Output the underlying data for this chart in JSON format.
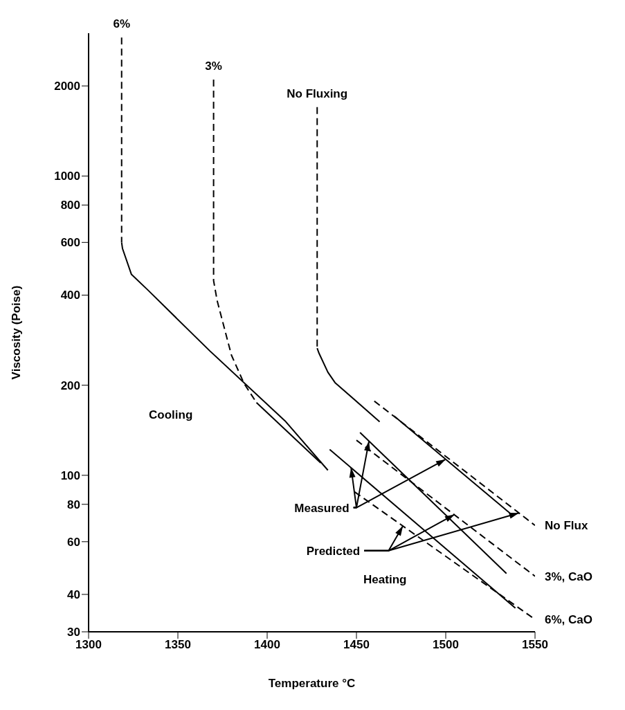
{
  "chart_data": {
    "type": "line",
    "xlabel": "Temperature °C",
    "ylabel": "Viscosity (Poise)",
    "log": true,
    "xlim": [
      1300,
      1550
    ],
    "xticks": [
      1300,
      1350,
      1400,
      1450,
      1500,
      1550
    ],
    "ylim": [
      30,
      3000
    ],
    "yticks": [
      30,
      40,
      60,
      80,
      100,
      200,
      400,
      600,
      800,
      1000,
      2000
    ],
    "series": [
      {
        "color": "#000000",
        "line_style": "dashed",
        "x": [
          1318.5,
          1318.5
        ],
        "values": [
          2900,
          600
        ]
      },
      {
        "color": "#000000",
        "line_style": "solid",
        "x": [
          1318.5,
          1319,
          1324,
          1333,
          1368,
          1410,
          1434
        ],
        "values": [
          600,
          572,
          469,
          417,
          260,
          152,
          104
        ]
      },
      {
        "color": "#000000",
        "line_style": "dashed",
        "x": [
          1370,
          1370,
          1372,
          1380,
          1387,
          1394
        ],
        "values": [
          2100,
          447,
          383,
          252,
          203,
          175
        ]
      },
      {
        "color": "#000000",
        "line_style": "solid",
        "x": [
          1394,
          1430
        ],
        "values": [
          175,
          110
        ]
      },
      {
        "color": "#000000",
        "line_style": "dashed",
        "x": [
          1428,
          1428
        ],
        "values": [
          1700,
          266
        ]
      },
      {
        "color": "#000000",
        "line_style": "solid",
        "x": [
          1428,
          1429,
          1434,
          1438,
          1463
        ],
        "values": [
          266,
          256,
          221,
          204,
          151
        ]
      },
      {
        "color": "#000000",
        "line_style": "solid",
        "x": [
          1471,
          1538
        ],
        "values": [
          158,
          73
        ]
      },
      {
        "color": "#000000",
        "line_style": "dashed",
        "x": [
          1460,
          1550
        ],
        "values": [
          177,
          68
        ]
      },
      {
        "color": "#000000",
        "line_style": "solid",
        "x": [
          1452,
          1534
        ],
        "values": [
          139,
          47
        ]
      },
      {
        "color": "#000000",
        "line_style": "dashed",
        "x": [
          1450,
          1550
        ],
        "values": [
          131,
          46
        ]
      },
      {
        "color": "#000000",
        "line_style": "solid",
        "x": [
          1435,
          1539
        ],
        "values": [
          122,
          36
        ]
      },
      {
        "color": "#000000",
        "line_style": "dashed",
        "x": [
          1449,
          1550
        ],
        "values": [
          88,
          33
        ]
      }
    ],
    "annotations": [
      {
        "text": "6%",
        "x": 1318.5,
        "y": 2900
      },
      {
        "text": "3%",
        "x": 1370,
        "y": 2100
      },
      {
        "text": "No Fluxing",
        "x": 1428,
        "y": 1700
      },
      {
        "text": "No Flux",
        "x": 1550,
        "y": 68
      },
      {
        "text": "3%, CaO",
        "x": 1550,
        "y": 46
      },
      {
        "text": "6%, CaO",
        "x": 1550,
        "y": 33
      },
      "Cooling",
      "Heating",
      {
        "text": "Measured",
        "x": 1457,
        "y": 130
      },
      {
        "text": "Predicted",
        "x": 1505,
        "y": 74
      }
    ]
  }
}
